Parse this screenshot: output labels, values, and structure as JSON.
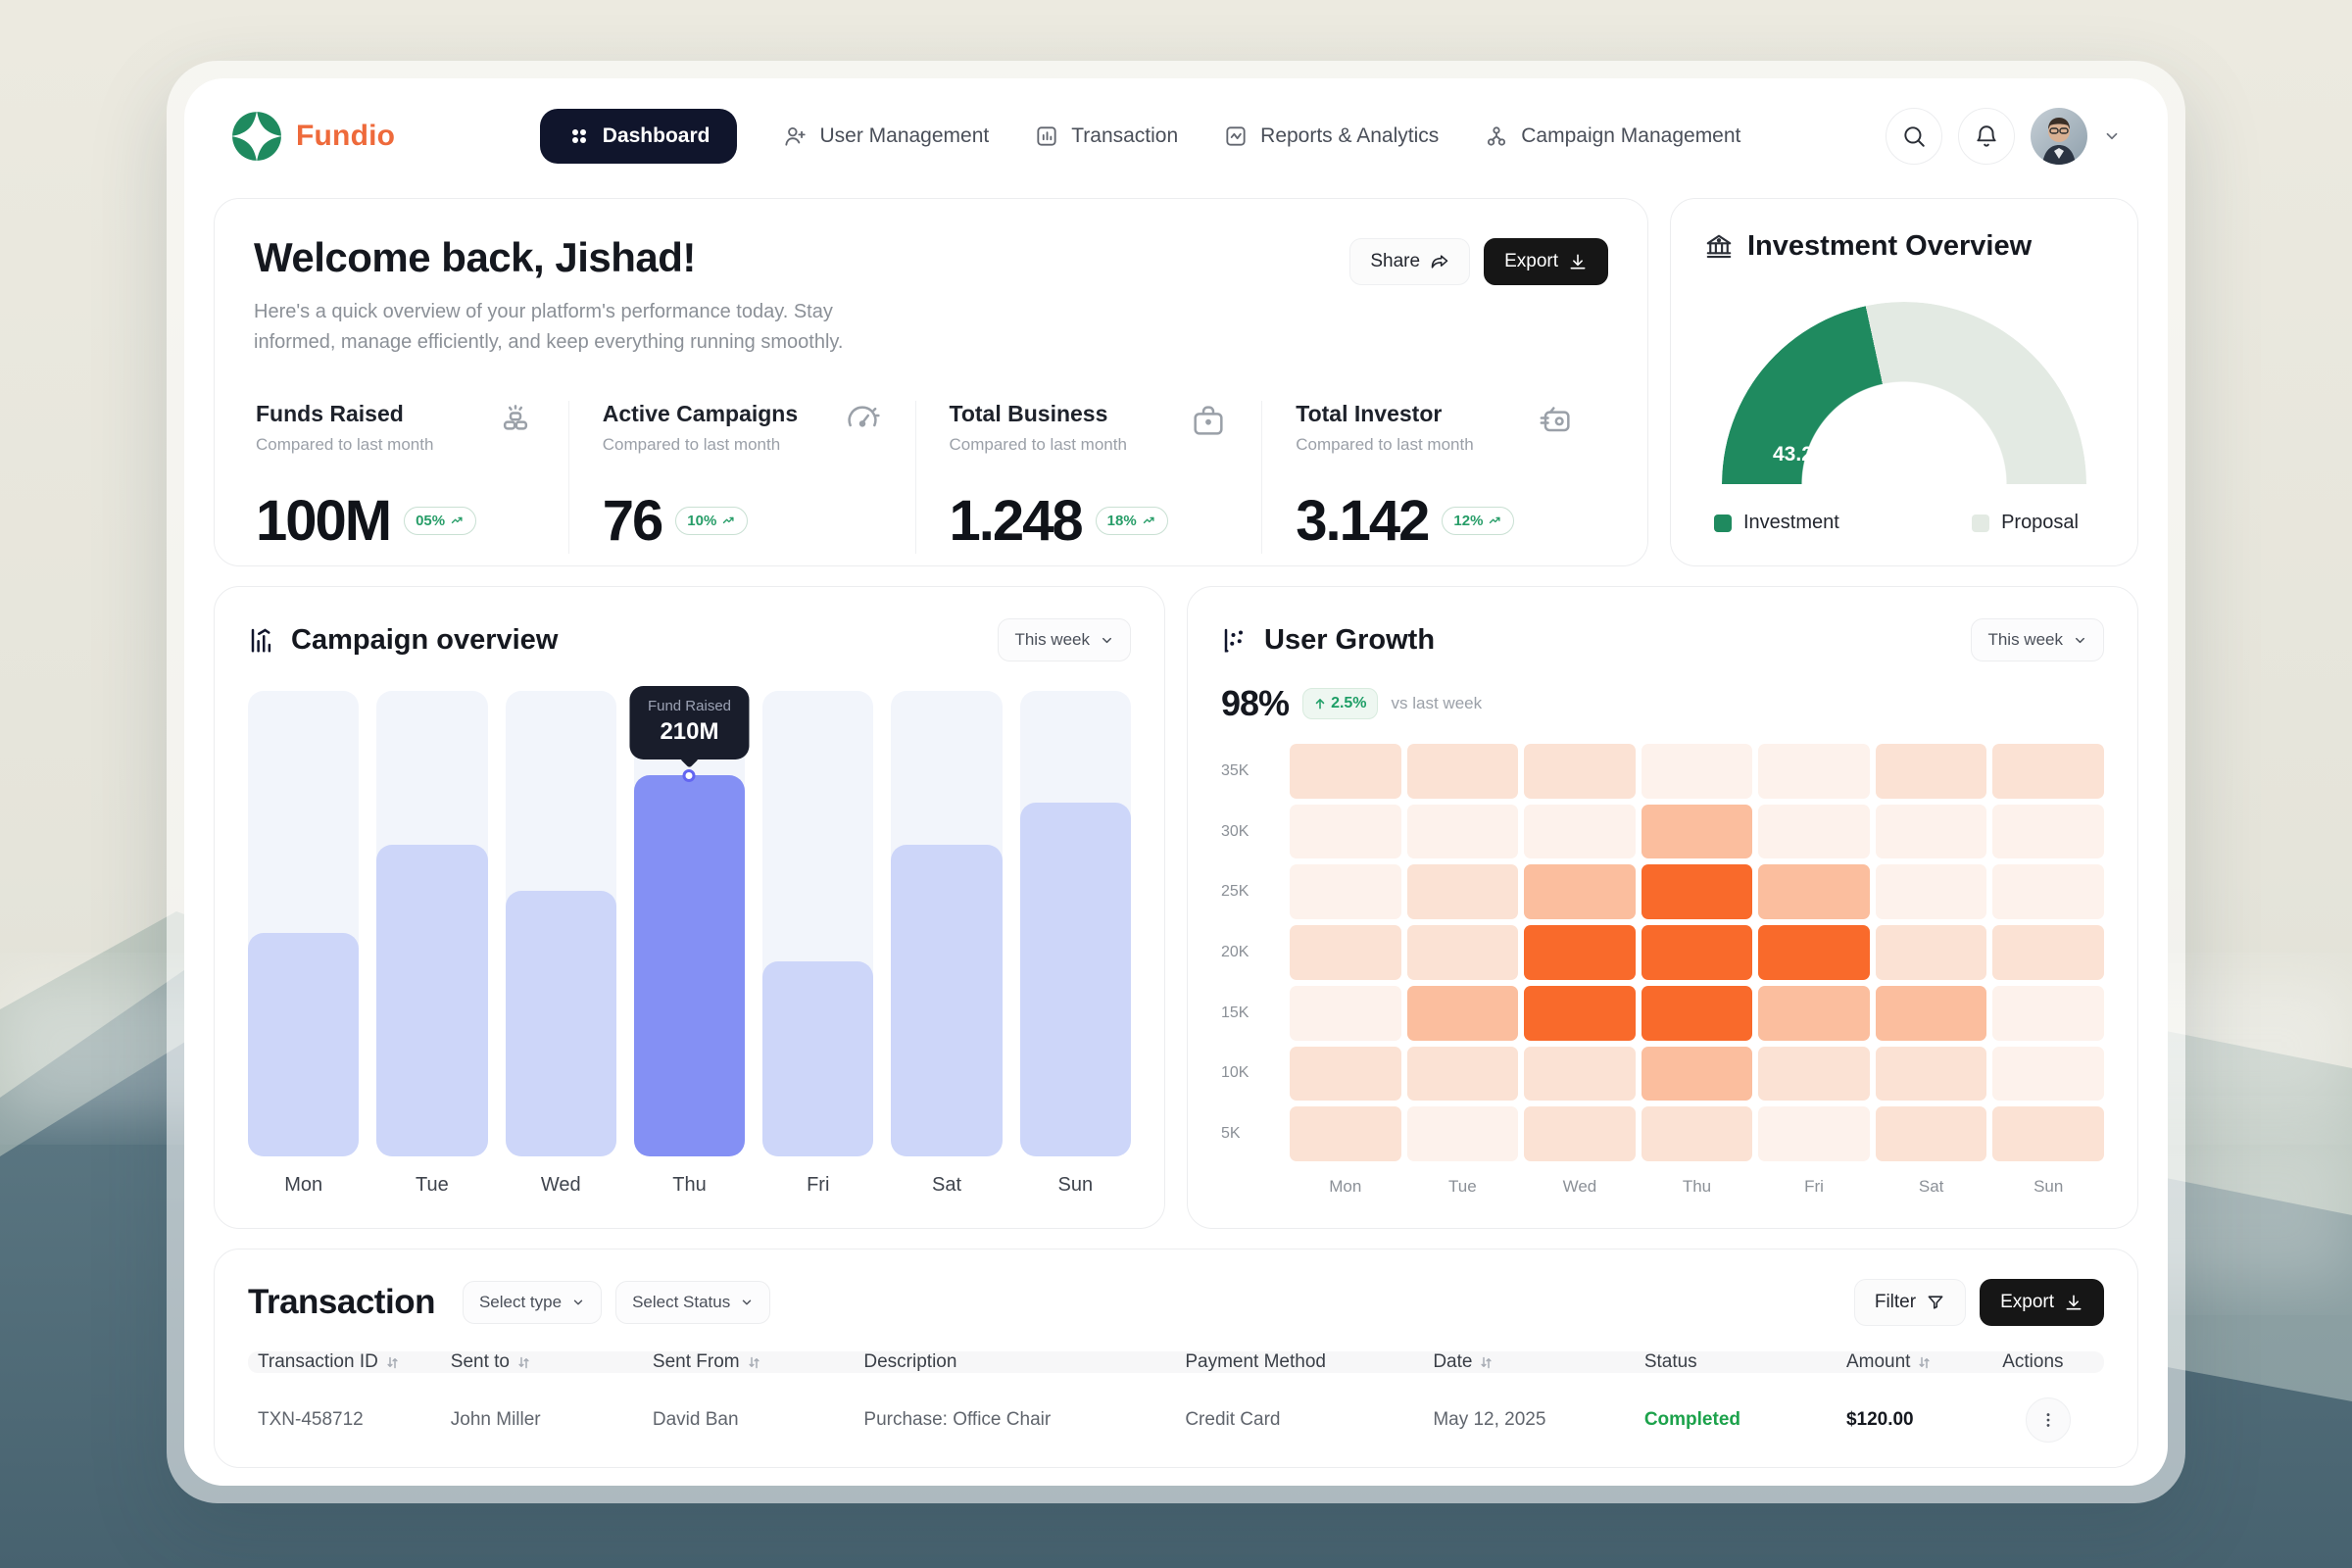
{
  "brand": {
    "name": "Fundio"
  },
  "nav": {
    "items": [
      {
        "label": "Dashboard",
        "icon": "grid-dots-icon",
        "active": true
      },
      {
        "label": "User Management",
        "icon": "user-plus-icon",
        "active": false
      },
      {
        "label": "Transaction",
        "icon": "bar-square-icon",
        "active": false
      },
      {
        "label": "Reports & Analytics",
        "icon": "activity-square-icon",
        "active": false
      },
      {
        "label": "Campaign Management",
        "icon": "org-chart-icon",
        "active": false
      }
    ]
  },
  "welcome": {
    "title": "Welcome back, Jishad!",
    "subtitle": "Here's a quick overview of your platform's performance today. Stay informed, manage efficiently, and keep everything running smoothly.",
    "share_label": "Share",
    "export_label": "Export"
  },
  "stats": [
    {
      "label": "Funds Raised",
      "sub": "Compared to last month",
      "value": "100M",
      "badge": "05%",
      "icon": "coins-icon"
    },
    {
      "label": "Active Campaigns",
      "sub": "Compared to last month",
      "value": "76",
      "badge": "10%",
      "icon": "gauge-icon"
    },
    {
      "label": "Total Business",
      "sub": "Compared to last month",
      "value": "1.248",
      "badge": "18%",
      "icon": "briefcase-icon"
    },
    {
      "label": "Total Investor",
      "sub": "Compared to last month",
      "value": "3.142",
      "badge": "12%",
      "icon": "wallet-coin-icon"
    }
  ],
  "investment": {
    "title": "Investment Overview"
  },
  "campaign": {
    "title": "Campaign overview",
    "range_label": "This week"
  },
  "user_growth": {
    "title": "User Growth",
    "range_label": "This week",
    "value": "98%",
    "delta": "2.5%",
    "delta_caption": "vs last week"
  },
  "transaction": {
    "title": "Transaction",
    "type_filter": "Select type",
    "status_filter": "Select Status",
    "filter_label": "Filter",
    "export_label": "Export",
    "columns": [
      {
        "label": "Transaction ID",
        "sortable": true
      },
      {
        "label": "Sent to",
        "sortable": true
      },
      {
        "label": "Sent From",
        "sortable": true
      },
      {
        "label": "Description",
        "sortable": false
      },
      {
        "label": "Payment Method",
        "sortable": false
      },
      {
        "label": "Date",
        "sortable": true
      },
      {
        "label": "Status",
        "sortable": false
      },
      {
        "label": "Amount",
        "sortable": true
      },
      {
        "label": "Actions",
        "sortable": false
      }
    ],
    "rows": [
      {
        "id": "TXN-458712",
        "sent_to": "John Miller",
        "sent_from": "David Ban",
        "description": "Purchase: Office Chair",
        "payment_method": "Credit Card",
        "date": "May 12, 2025",
        "status": "Completed",
        "amount": "$120.00"
      }
    ]
  },
  "chart_data": [
    {
      "type": "pie",
      "style": "half-donut",
      "title": "Investment Overview",
      "labels": [
        "Investment",
        "Proposal"
      ],
      "values": [
        43.2,
        56.8
      ],
      "colors": [
        "#1F8A5F",
        "#E3EAE3"
      ],
      "label": "43.2%",
      "legend_position": "bottom"
    },
    {
      "type": "bar",
      "title": "Campaign overview",
      "range": "This week",
      "categories": [
        "Mon",
        "Tue",
        "Wed",
        "Thu",
        "Fri",
        "Sat",
        "Sun"
      ],
      "values": [
        125,
        175,
        150,
        210,
        110,
        172,
        195
      ],
      "unit": "M",
      "heights_pct": [
        48,
        67,
        57,
        82,
        42,
        67,
        76
      ],
      "highlight_index": 3,
      "highlight_label": "Fund Raised",
      "highlight_value": "210M",
      "bar_color": "#CDD6F9",
      "highlight_color": "#8490F4",
      "track_color": "#F2F5FB"
    },
    {
      "type": "heatmap",
      "title": "User Growth",
      "range": "This week",
      "x": [
        "Mon",
        "Tue",
        "Wed",
        "Thu",
        "Fri",
        "Sat",
        "Sun"
      ],
      "y": [
        "35K",
        "30K",
        "25K",
        "20K",
        "15K",
        "10K",
        "5K"
      ],
      "intensity_scale": "0=lowest, 3=highest",
      "palette": [
        "#FDF2EC",
        "#FBE2D4",
        "#FBBE9E",
        "#F96A2B"
      ],
      "matrix": [
        [
          1,
          1,
          1,
          0,
          0,
          1,
          1
        ],
        [
          0,
          0,
          0,
          2,
          0,
          0,
          0
        ],
        [
          0,
          1,
          2,
          3,
          2,
          0,
          0
        ],
        [
          1,
          1,
          3,
          3,
          3,
          1,
          1
        ],
        [
          0,
          2,
          3,
          3,
          2,
          2,
          0
        ],
        [
          1,
          1,
          1,
          2,
          1,
          1,
          0
        ],
        [
          1,
          0,
          1,
          1,
          0,
          1,
          1
        ]
      ]
    }
  ]
}
